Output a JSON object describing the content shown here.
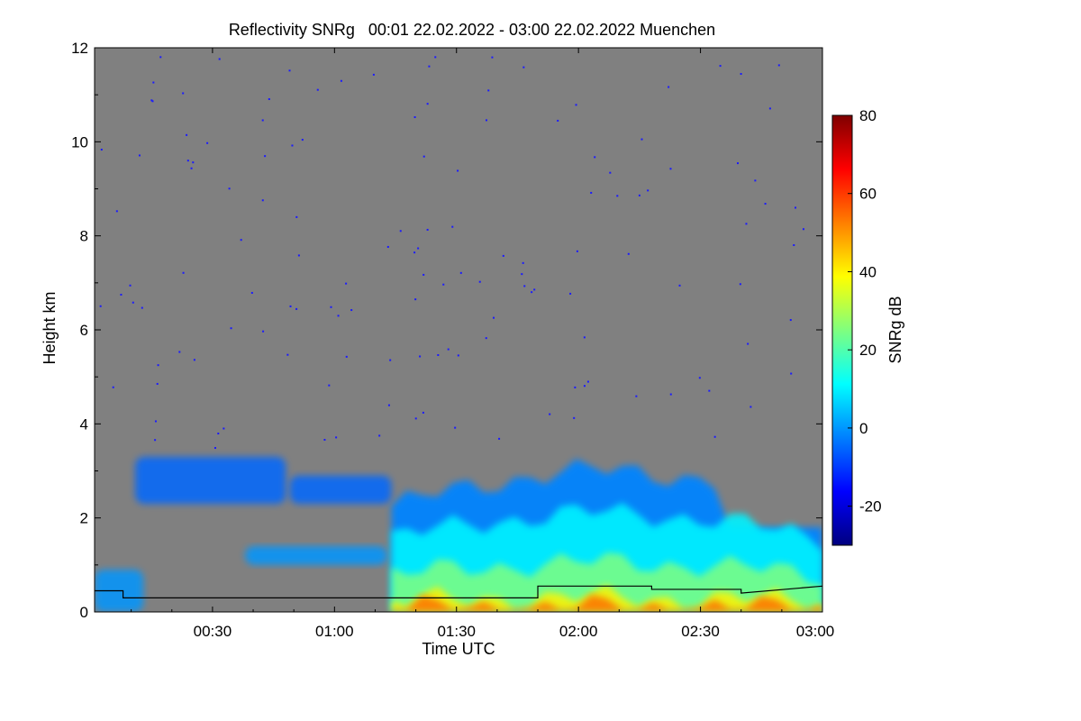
{
  "chart_data": {
    "type": "heatmap",
    "title": "Reflectivity SNRg   00:01 22.02.2022 - 03:00 22.02.2022 Muenchen",
    "xlabel": "Time UTC",
    "ylabel": "Height km",
    "colorbar_label": "SNRg dB",
    "x_range_minutes": [
      1,
      180
    ],
    "x_ticks": [
      {
        "minute": 30,
        "label": "00:30"
      },
      {
        "minute": 60,
        "label": "01:00"
      },
      {
        "minute": 90,
        "label": "01:30"
      },
      {
        "minute": 120,
        "label": "02:00"
      },
      {
        "minute": 150,
        "label": "02:30"
      },
      {
        "minute": 180,
        "label": "03:00"
      }
    ],
    "ylim": [
      0,
      12
    ],
    "y_ticks": [
      0,
      2,
      4,
      6,
      8,
      10,
      12
    ],
    "colorbar_range": [
      -30,
      80
    ],
    "colorbar_ticks": [
      -20,
      0,
      20,
      40,
      60,
      80
    ],
    "colormap": [
      "#00007f",
      "#0000ff",
      "#007fff",
      "#00ffff",
      "#7fff7f",
      "#ffff00",
      "#ff7f00",
      "#ff0000",
      "#7f0000"
    ],
    "background_color": "#808080",
    "echo_regions": [
      {
        "name": "upper thin layer",
        "t_start": 11,
        "t_end": 48,
        "base_km": 2.3,
        "top_km": 3.3,
        "snr_db": -5
      },
      {
        "name": "mid-level layer",
        "t_start": 49,
        "t_end": 74,
        "base_km": 2.3,
        "top_km": 2.9,
        "snr_db": -5
      },
      {
        "name": "low thin layer",
        "t_start": 38,
        "t_end": 73,
        "base_km": 1.0,
        "top_km": 1.4,
        "snr_db": 0
      },
      {
        "name": "main precipitation",
        "t_start": 74,
        "t_end": 180,
        "base_km": 0.0,
        "top_km": 3.0,
        "snr_db": 25
      },
      {
        "name": "surface clutter",
        "t_start": 1,
        "t_end": 13,
        "base_km": 0.0,
        "top_km": 0.9,
        "snr_db": 0
      }
    ],
    "overlay_line": {
      "name": "boundary layer height",
      "points": [
        [
          1,
          0.45
        ],
        [
          8,
          0.45
        ],
        [
          8,
          0.3
        ],
        [
          110,
          0.3
        ],
        [
          110,
          0.55
        ],
        [
          138,
          0.55
        ],
        [
          138,
          0.48
        ],
        [
          160,
          0.48
        ],
        [
          160,
          0.4
        ],
        [
          180,
          0.55
        ]
      ]
    }
  }
}
